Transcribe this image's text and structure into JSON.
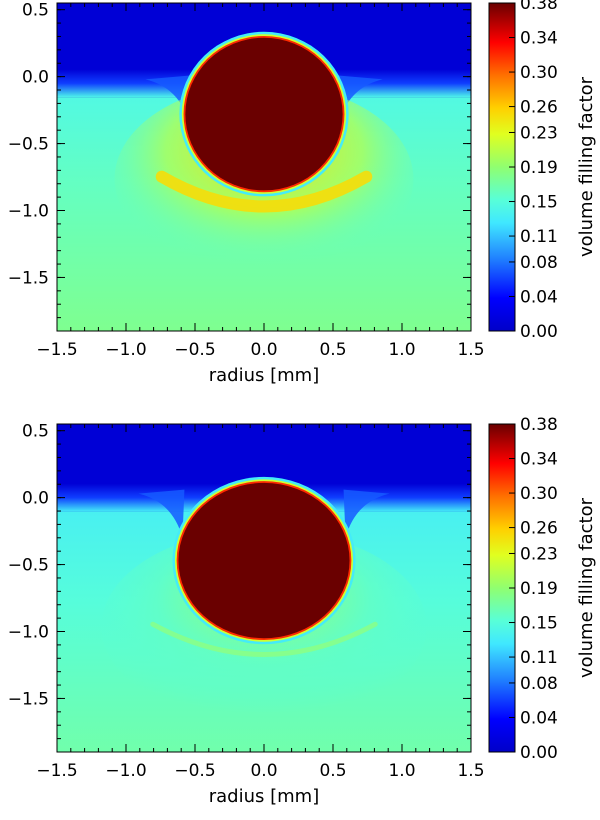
{
  "chart_data": [
    {
      "type": "heatmap",
      "xlabel": "radius [mm]",
      "xlim": [
        -1.5,
        1.5
      ],
      "ylim": [
        -1.9,
        0.55
      ],
      "xticks": [
        "−1.5",
        "−1.0",
        "−0.5",
        "0.0",
        "0.5",
        "1.0",
        "1.5"
      ],
      "xtick_values": [
        -1.5,
        -1.0,
        -0.5,
        0.0,
        0.5,
        1.0,
        1.5
      ],
      "yticks": [
        "0.5",
        "0.0",
        "−0.5",
        "−1.0",
        "−1.5"
      ],
      "ytick_values": [
        0.5,
        0.0,
        -0.5,
        -1.0,
        -1.5
      ],
      "colorbar": {
        "label": "volume filling factor",
        "range": [
          0.0,
          0.38
        ],
        "ticks": [
          "0.38",
          "0.34",
          "0.30",
          "0.26",
          "0.23",
          "0.19",
          "0.15",
          "0.11",
          "0.08",
          "0.04",
          "0.00"
        ],
        "tick_values": [
          0.38,
          0.34,
          0.3,
          0.26,
          0.23,
          0.19,
          0.15,
          0.11,
          0.08,
          0.04,
          0.0
        ]
      },
      "features": {
        "sphere": {
          "center_x": 0.0,
          "center_y": -0.28,
          "radius_x": 0.57,
          "radius_y": 0.57,
          "value": 0.38
        },
        "surface_y": -0.05,
        "bed_value": 0.16,
        "air_value": 0.01,
        "compaction_arc_value": 0.25
      }
    },
    {
      "type": "heatmap",
      "xlabel": "radius [mm]",
      "xlim": [
        -1.5,
        1.5
      ],
      "ylim": [
        -1.9,
        0.55
      ],
      "xticks": [
        "−1.5",
        "−1.0",
        "−0.5",
        "0.0",
        "0.5",
        "1.0",
        "1.5"
      ],
      "xtick_values": [
        -1.5,
        -1.0,
        -0.5,
        0.0,
        0.5,
        1.0,
        1.5
      ],
      "yticks": [
        "0.5",
        "0.0",
        "−0.5",
        "−1.0",
        "−1.5"
      ],
      "ytick_values": [
        0.5,
        0.0,
        -0.5,
        -1.0,
        -1.5
      ],
      "colorbar": {
        "label": "volume filling factor",
        "range": [
          0.0,
          0.38
        ],
        "ticks": [
          "0.38",
          "0.34",
          "0.30",
          "0.26",
          "0.23",
          "0.19",
          "0.15",
          "0.11",
          "0.08",
          "0.04",
          "0.00"
        ],
        "tick_values": [
          0.38,
          0.34,
          0.3,
          0.26,
          0.23,
          0.19,
          0.15,
          0.11,
          0.08,
          0.04,
          0.0
        ]
      },
      "features": {
        "sphere": {
          "center_x": 0.0,
          "center_y": -0.47,
          "radius_x": 0.62,
          "radius_y": 0.58,
          "value": 0.38
        },
        "surface_y": 0.0,
        "bed_value": 0.15,
        "air_value": 0.01,
        "compaction_arc_value": 0.2
      }
    }
  ]
}
